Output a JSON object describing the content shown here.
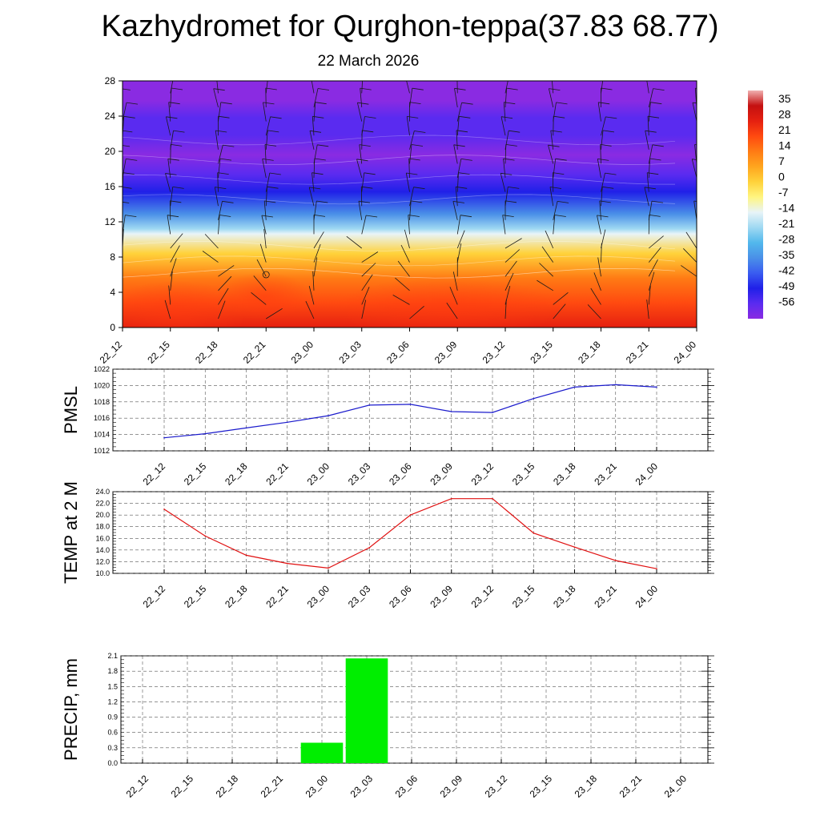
{
  "title": "Kazhydromet for Qurghon-teppa(37.83 68.77)",
  "subtitle": "22 March 2026",
  "time_labels": [
    "22_12",
    "22_15",
    "22_18",
    "22_21",
    "23_00",
    "23_03",
    "23_06",
    "23_09",
    "23_12",
    "23_15",
    "23_18",
    "23_21",
    "24_00"
  ],
  "chart_data": [
    {
      "type": "heatmap",
      "name": "upper-air temperature cross-section",
      "x": [
        "22_12",
        "22_15",
        "22_18",
        "22_21",
        "23_00",
        "23_03",
        "23_06",
        "23_09",
        "23_12",
        "23_15",
        "23_18",
        "23_21",
        "24_00"
      ],
      "ylim": [
        0,
        28
      ],
      "yticks": [
        "0",
        "4",
        "8",
        "12",
        "16",
        "20",
        "24",
        "28"
      ],
      "colorbar_labels": [
        "35",
        "28",
        "21",
        "14",
        "7",
        "0",
        "-7",
        "-14",
        "-21",
        "-28",
        "-35",
        "-42",
        "-49",
        "-56"
      ],
      "colorbar_range": [
        -63,
        42
      ],
      "band_colors": [
        {
          "level": -63,
          "color": "#8a2be2"
        },
        {
          "level": -56,
          "color": "#5a2bf0"
        },
        {
          "level": -49,
          "color": "#2020e8"
        },
        {
          "level": -42,
          "color": "#3a5cf0"
        },
        {
          "level": -35,
          "color": "#4a90e8"
        },
        {
          "level": -28,
          "color": "#52b8ec"
        },
        {
          "level": -21,
          "color": "#9fd9f2"
        },
        {
          "level": -14,
          "color": "#e8f4f8"
        },
        {
          "level": -7,
          "color": "#fff580"
        },
        {
          "level": 0,
          "color": "#ffd23a"
        },
        {
          "level": 7,
          "color": "#ffa51e"
        },
        {
          "level": 14,
          "color": "#ff7b14"
        },
        {
          "level": 21,
          "color": "#ff4a10"
        },
        {
          "level": 28,
          "color": "#e52010"
        },
        {
          "level": 35,
          "color": "#c41010"
        },
        {
          "level": 42,
          "color": "#f0b0b0"
        }
      ],
      "grid": false
    },
    {
      "type": "line",
      "ylabel": "PMSL",
      "x": [
        "22_12",
        "22_15",
        "22_18",
        "22_21",
        "23_00",
        "23_03",
        "23_06",
        "23_09",
        "23_12",
        "23_15",
        "23_18",
        "23_21",
        "24_00"
      ],
      "values": [
        1013.6,
        1014.1,
        1014.8,
        1015.5,
        1016.3,
        1017.6,
        1017.7,
        1016.8,
        1016.7,
        1018.4,
        1019.8,
        1020.1,
        1019.8
      ],
      "ylim": [
        1012,
        1022
      ],
      "yticks": [
        "1012",
        "1014",
        "1016",
        "1018",
        "1020",
        "1022"
      ],
      "color": "#1a1acc",
      "grid": true
    },
    {
      "type": "line",
      "ylabel": "TEMP at 2 M",
      "x": [
        "22_12",
        "22_15",
        "22_18",
        "22_21",
        "23_00",
        "23_03",
        "23_06",
        "23_09",
        "23_12",
        "23_15",
        "23_18",
        "23_21",
        "24_00"
      ],
      "values": [
        21.0,
        16.4,
        13.1,
        11.7,
        10.9,
        14.4,
        20.0,
        22.8,
        22.8,
        16.9,
        14.5,
        12.2,
        10.8
      ],
      "ylim": [
        10,
        24
      ],
      "yticks": [
        "10.0",
        "12.0",
        "14.0",
        "16.0",
        "18.0",
        "20.0",
        "22.0",
        "24.0"
      ],
      "color": "#e01010",
      "grid": true
    },
    {
      "type": "bar",
      "ylabel": "PRECIP, mm",
      "x": [
        "22_12",
        "22_15",
        "22_18",
        "22_21",
        "23_00",
        "23_03",
        "23_06",
        "23_09",
        "23_12",
        "23_15",
        "23_18",
        "23_21",
        "24_00"
      ],
      "values": [
        0,
        0,
        0,
        0,
        0.4,
        2.05,
        0,
        0,
        0,
        0,
        0,
        0,
        0
      ],
      "ylim": [
        0,
        2.1
      ],
      "yticks": [
        "0.0",
        "0.3",
        "0.6",
        "0.9",
        "1.2",
        "1.5",
        "1.8",
        "2.1"
      ],
      "color": "#00ee00",
      "grid": true
    }
  ]
}
